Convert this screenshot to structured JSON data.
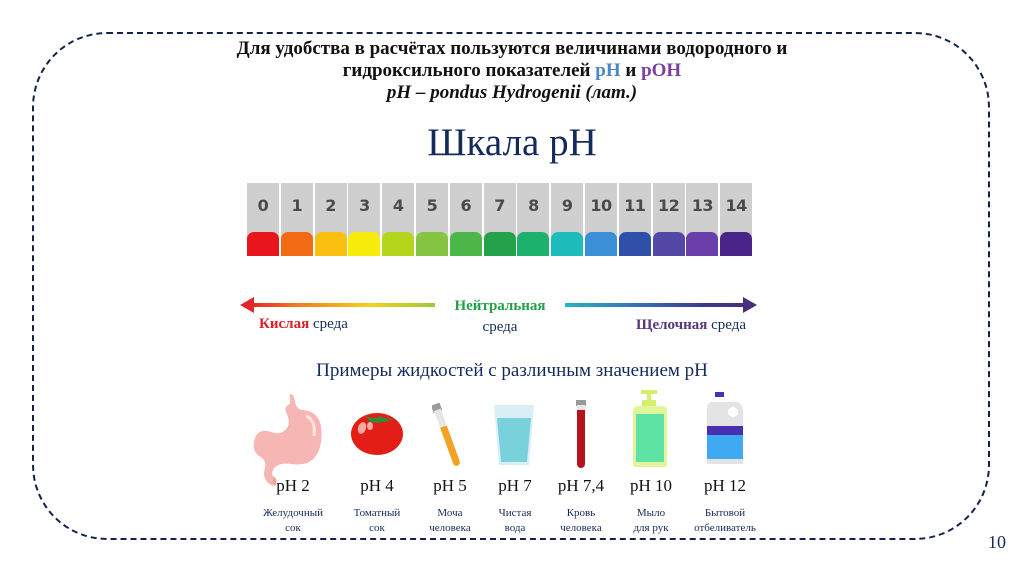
{
  "header": {
    "line1": "Для удобства в расчётах пользуются величинами водородного и",
    "line2_prefix": "гидроксильного  показателей ",
    "line2_ph": "pH",
    "line2_and": " и ",
    "line2_poh": "pOH",
    "line3": "pH – pondus Hydrogenii (лат.)",
    "colors": {
      "ph": "#4a86c8",
      "poh": "#7b3fa0"
    }
  },
  "scale": {
    "title": "Шкала pH",
    "tiles": [
      {
        "value": "0",
        "color": "#e8151c"
      },
      {
        "value": "1",
        "color": "#f36a15"
      },
      {
        "value": "2",
        "color": "#fbbf10"
      },
      {
        "value": "3",
        "color": "#f8ec0c"
      },
      {
        "value": "4",
        "color": "#b3d61c"
      },
      {
        "value": "5",
        "color": "#86c543"
      },
      {
        "value": "6",
        "color": "#4db648"
      },
      {
        "value": "7",
        "color": "#23a24b"
      },
      {
        "value": "8",
        "color": "#1cb26e"
      },
      {
        "value": "9",
        "color": "#1dbdbb"
      },
      {
        "value": "10",
        "color": "#3a8fd6"
      },
      {
        "value": "11",
        "color": "#2f4fa8"
      },
      {
        "value": "12",
        "color": "#5348a6"
      },
      {
        "value": "13",
        "color": "#6a3fab"
      },
      {
        "value": "14",
        "color": "#4a2488"
      }
    ]
  },
  "environment": {
    "acid_strong": "Кислая",
    "acid_rest": " среда",
    "neutral_strong": "Нейтральная",
    "neutral_rest": "среда",
    "alkali_strong": "Щелочная",
    "alkali_rest": " среда"
  },
  "examples": {
    "title": "Примеры жидкостей с различным значением pH",
    "items": [
      {
        "ph": "pH 2",
        "desc1": "Желудочный",
        "desc2": "сок",
        "icon": "stomach-icon"
      },
      {
        "ph": "pH 4",
        "desc1": "Томатный",
        "desc2": "сок",
        "icon": "tomato-icon"
      },
      {
        "ph": "pH 5",
        "desc1": "Моча",
        "desc2": "человека",
        "icon": "test-tube-yellow-icon"
      },
      {
        "ph": "pH 7",
        "desc1": "Чистая",
        "desc2": "вода",
        "icon": "water-glass-icon"
      },
      {
        "ph": "pH 7,4",
        "desc1": "Кровь",
        "desc2": "человека",
        "icon": "test-tube-blood-icon"
      },
      {
        "ph": "pH 10",
        "desc1": "Мыло",
        "desc2": "для рук",
        "icon": "soap-dispenser-icon"
      },
      {
        "ph": "pH 12",
        "desc1": "Бытовой",
        "desc2": "отбеливатель",
        "icon": "bleach-bottle-icon"
      }
    ]
  },
  "page_number": "10"
}
